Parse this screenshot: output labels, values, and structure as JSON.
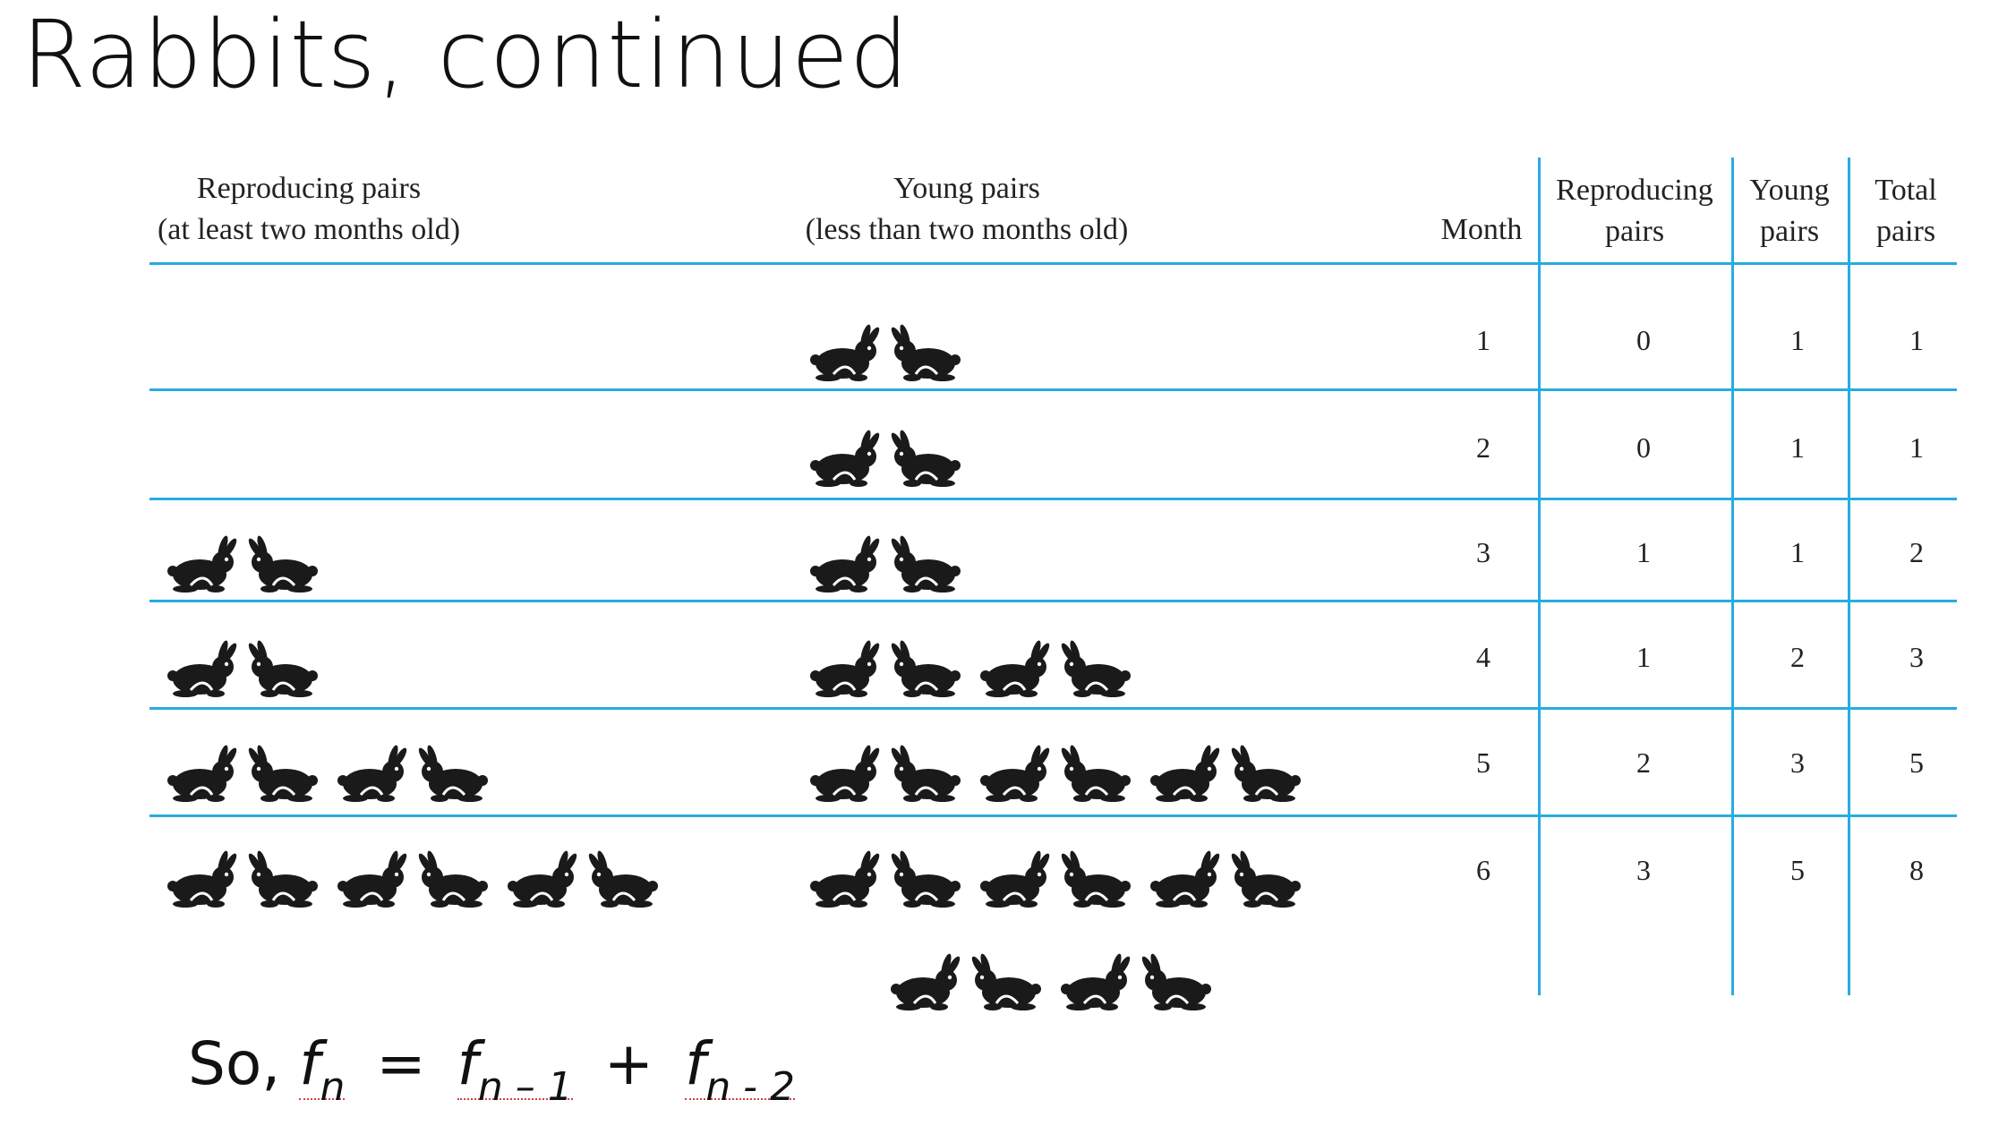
{
  "title": "Rabbits, continued",
  "headers": {
    "reproducing_line1": "Reproducing pairs",
    "reproducing_line2": "(at least two months old)",
    "young_line1": "Young pairs",
    "young_line2": "(less than two months old)",
    "month": "Month",
    "repro_col_line1": "Reproducing",
    "repro_col_line2": "pairs",
    "young_col_line1": "Young",
    "young_col_line2": "pairs",
    "total_col_line1": "Total",
    "total_col_line2": "pairs"
  },
  "rows": [
    {
      "month": "1",
      "reproducing": "0",
      "young": "1",
      "total": "1"
    },
    {
      "month": "2",
      "reproducing": "0",
      "young": "1",
      "total": "1"
    },
    {
      "month": "3",
      "reproducing": "1",
      "young": "1",
      "total": "2"
    },
    {
      "month": "4",
      "reproducing": "1",
      "young": "2",
      "total": "3"
    },
    {
      "month": "5",
      "reproducing": "2",
      "young": "3",
      "total": "5"
    },
    {
      "month": "6",
      "reproducing": "3",
      "young": "5",
      "total": "8"
    }
  ],
  "formula": {
    "prefix": "So,",
    "f": "f",
    "sub_n": "n",
    "equals": "=",
    "sub_n1": "n – 1",
    "plus": "+",
    "sub_n2": "n - 2"
  },
  "colors": {
    "rule": "#29abe2",
    "rabbit": "#1a1a1a"
  },
  "icons": {
    "rabbit_pair": "rabbit-pair-icon"
  }
}
